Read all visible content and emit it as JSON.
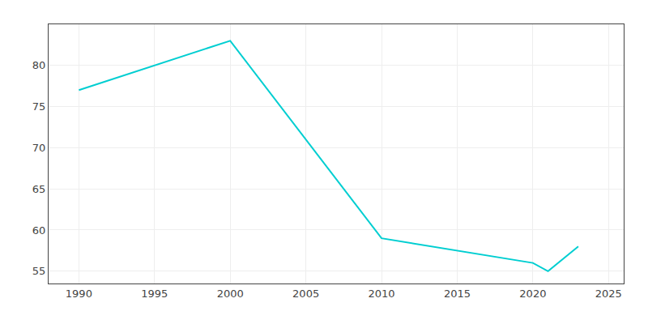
{
  "chart_data": {
    "type": "line",
    "x": [
      1990,
      2000,
      2010,
      2015,
      2020,
      2021,
      2023
    ],
    "values": [
      77,
      83,
      59,
      57.5,
      56,
      55,
      58
    ],
    "color": "#00CED1",
    "xlim": [
      1988,
      2026
    ],
    "ylim": [
      53.5,
      85
    ],
    "xticks": [
      1990,
      1995,
      2000,
      2005,
      2010,
      2015,
      2020,
      2025
    ],
    "yticks": [
      55,
      60,
      65,
      70,
      75,
      80
    ],
    "grid": true
  }
}
